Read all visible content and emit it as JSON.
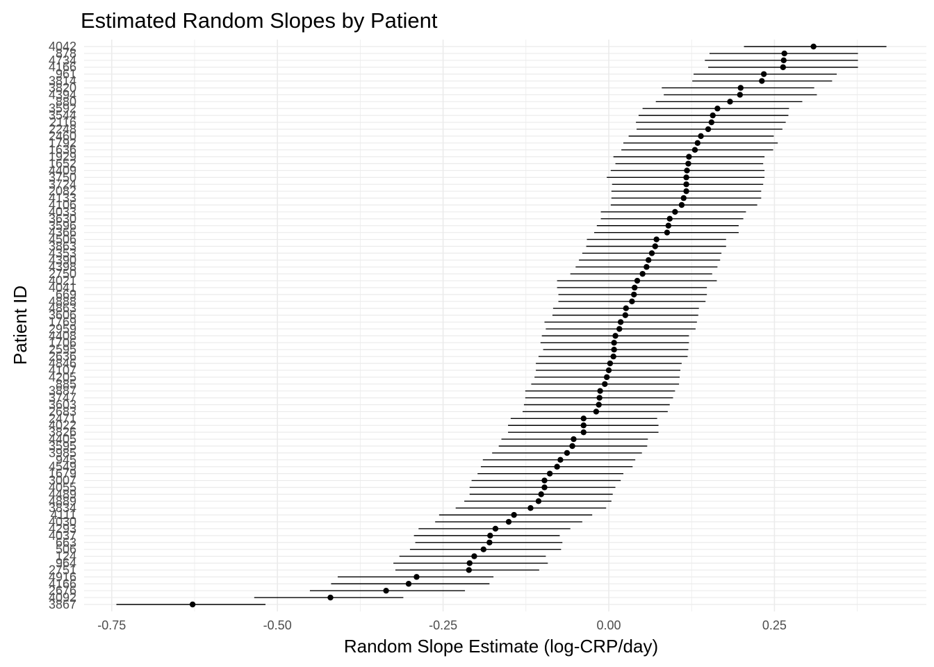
{
  "chart_data": {
    "type": "scatter",
    "title": "Estimated Random Slopes by Patient",
    "xlabel": "Random Slope Estimate (log-CRP/day)",
    "ylabel": "Patient ID",
    "xlim": [
      -0.8,
      0.48
    ],
    "x_ticks": [
      -0.75,
      -0.5,
      -0.25,
      0.0,
      0.25
    ],
    "x_tick_labels": [
      "-0.75",
      "-0.50",
      "-0.25",
      "0.00",
      "0.25"
    ],
    "grid": true,
    "legend": "none",
    "point_color": "#000000",
    "errorbar_color": "#000000",
    "grid_color": "#ebebeb",
    "patients": [
      {
        "id": "4042",
        "estimate": 0.309,
        "lower": 0.204,
        "upper": 0.419
      },
      {
        "id": "878",
        "estimate": 0.265,
        "lower": 0.152,
        "upper": 0.376
      },
      {
        "id": "4734",
        "estimate": 0.264,
        "lower": 0.145,
        "upper": 0.376
      },
      {
        "id": "4166",
        "estimate": 0.263,
        "lower": 0.15,
        "upper": 0.376
      },
      {
        "id": "961",
        "estimate": 0.234,
        "lower": 0.128,
        "upper": 0.344
      },
      {
        "id": "3814",
        "estimate": 0.231,
        "lower": 0.126,
        "upper": 0.337
      },
      {
        "id": "3820",
        "estimate": 0.199,
        "lower": 0.08,
        "upper": 0.31
      },
      {
        "id": "4394",
        "estimate": 0.198,
        "lower": 0.083,
        "upper": 0.314
      },
      {
        "id": "880",
        "estimate": 0.183,
        "lower": 0.071,
        "upper": 0.292
      },
      {
        "id": "3592",
        "estimate": 0.164,
        "lower": 0.051,
        "upper": 0.272
      },
      {
        "id": "3544",
        "estimate": 0.157,
        "lower": 0.045,
        "upper": 0.271
      },
      {
        "id": "2116",
        "estimate": 0.155,
        "lower": 0.041,
        "upper": 0.267
      },
      {
        "id": "2248",
        "estimate": 0.15,
        "lower": 0.042,
        "upper": 0.262
      },
      {
        "id": "2460",
        "estimate": 0.139,
        "lower": 0.03,
        "upper": 0.249
      },
      {
        "id": "1792",
        "estimate": 0.134,
        "lower": 0.022,
        "upper": 0.255
      },
      {
        "id": "1636",
        "estimate": 0.13,
        "lower": 0.019,
        "upper": 0.248
      },
      {
        "id": "1929",
        "estimate": 0.121,
        "lower": 0.007,
        "upper": 0.235
      },
      {
        "id": "1652",
        "estimate": 0.12,
        "lower": 0.01,
        "upper": 0.233
      },
      {
        "id": "4409",
        "estimate": 0.118,
        "lower": 0.003,
        "upper": 0.235
      },
      {
        "id": "3750",
        "estimate": 0.117,
        "lower": -0.003,
        "upper": 0.235
      },
      {
        "id": "3724",
        "estimate": 0.117,
        "lower": 0.005,
        "upper": 0.233
      },
      {
        "id": "2082",
        "estimate": 0.117,
        "lower": 0.004,
        "upper": 0.23
      },
      {
        "id": "4133",
        "estimate": 0.113,
        "lower": 0.004,
        "upper": 0.23
      },
      {
        "id": "4106",
        "estimate": 0.11,
        "lower": 0.003,
        "upper": 0.224
      },
      {
        "id": "4033",
        "estimate": 0.1,
        "lower": -0.012,
        "upper": 0.207
      },
      {
        "id": "3630",
        "estimate": 0.092,
        "lower": -0.012,
        "upper": 0.203
      },
      {
        "id": "3596",
        "estimate": 0.09,
        "lower": -0.018,
        "upper": 0.196
      },
      {
        "id": "4366",
        "estimate": 0.088,
        "lower": -0.022,
        "upper": 0.196
      },
      {
        "id": "4506",
        "estimate": 0.072,
        "lower": -0.033,
        "upper": 0.177
      },
      {
        "id": "3863",
        "estimate": 0.07,
        "lower": -0.034,
        "upper": 0.177
      },
      {
        "id": "4353",
        "estimate": 0.065,
        "lower": -0.04,
        "upper": 0.17
      },
      {
        "id": "4390",
        "estimate": 0.06,
        "lower": -0.045,
        "upper": 0.168
      },
      {
        "id": "4398",
        "estimate": 0.057,
        "lower": -0.05,
        "upper": 0.164
      },
      {
        "id": "2750",
        "estimate": 0.051,
        "lower": -0.058,
        "upper": 0.156
      },
      {
        "id": "4021",
        "estimate": 0.043,
        "lower": -0.078,
        "upper": 0.163
      },
      {
        "id": "4041",
        "estimate": 0.039,
        "lower": -0.078,
        "upper": 0.148
      },
      {
        "id": "669",
        "estimate": 0.038,
        "lower": -0.076,
        "upper": 0.148
      },
      {
        "id": "4888",
        "estimate": 0.035,
        "lower": -0.076,
        "upper": 0.146
      },
      {
        "id": "4863",
        "estimate": 0.026,
        "lower": -0.084,
        "upper": 0.136
      },
      {
        "id": "3606",
        "estimate": 0.025,
        "lower": -0.085,
        "upper": 0.135
      },
      {
        "id": "1769",
        "estimate": 0.018,
        "lower": -0.097,
        "upper": 0.133
      },
      {
        "id": "2959",
        "estimate": 0.016,
        "lower": -0.095,
        "upper": 0.131
      },
      {
        "id": "4408",
        "estimate": 0.01,
        "lower": -0.101,
        "upper": 0.121
      },
      {
        "id": "1706",
        "estimate": 0.008,
        "lower": -0.103,
        "upper": 0.121
      },
      {
        "id": "2595",
        "estimate": 0.008,
        "lower": -0.099,
        "upper": 0.12
      },
      {
        "id": "2636",
        "estimate": 0.007,
        "lower": -0.106,
        "upper": 0.119
      },
      {
        "id": "4846",
        "estimate": 0.002,
        "lower": -0.11,
        "upper": 0.11
      },
      {
        "id": "4107",
        "estimate": 0.0,
        "lower": -0.11,
        "upper": 0.108
      },
      {
        "id": "4205",
        "estimate": -0.003,
        "lower": -0.112,
        "upper": 0.107
      },
      {
        "id": "885",
        "estimate": -0.006,
        "lower": -0.117,
        "upper": 0.106
      },
      {
        "id": "3887",
        "estimate": -0.013,
        "lower": -0.126,
        "upper": 0.1
      },
      {
        "id": "3747",
        "estimate": -0.014,
        "lower": -0.126,
        "upper": 0.097
      },
      {
        "id": "3603",
        "estimate": -0.015,
        "lower": -0.128,
        "upper": 0.092
      },
      {
        "id": "2683",
        "estimate": -0.019,
        "lower": -0.13,
        "upper": 0.089
      },
      {
        "id": "2471",
        "estimate": -0.038,
        "lower": -0.148,
        "upper": 0.073
      },
      {
        "id": "4022",
        "estimate": -0.038,
        "lower": -0.152,
        "upper": 0.075
      },
      {
        "id": "3826",
        "estimate": -0.038,
        "lower": -0.152,
        "upper": 0.075
      },
      {
        "id": "4405",
        "estimate": -0.053,
        "lower": -0.162,
        "upper": 0.059
      },
      {
        "id": "3595",
        "estimate": -0.055,
        "lower": -0.166,
        "upper": 0.058
      },
      {
        "id": "3985",
        "estimate": -0.063,
        "lower": -0.176,
        "upper": 0.05
      },
      {
        "id": "945",
        "estimate": -0.073,
        "lower": -0.19,
        "upper": 0.04
      },
      {
        "id": "4549",
        "estimate": -0.078,
        "lower": -0.193,
        "upper": 0.036
      },
      {
        "id": "1679",
        "estimate": -0.089,
        "lower": -0.198,
        "upper": 0.022
      },
      {
        "id": "3007",
        "estimate": -0.097,
        "lower": -0.207,
        "upper": 0.018
      },
      {
        "id": "4055",
        "estimate": -0.097,
        "lower": -0.21,
        "upper": 0.01
      },
      {
        "id": "4489",
        "estimate": -0.102,
        "lower": -0.21,
        "upper": 0.006
      },
      {
        "id": "4889",
        "estimate": -0.106,
        "lower": -0.218,
        "upper": 0.004
      },
      {
        "id": "3834",
        "estimate": -0.118,
        "lower": -0.231,
        "upper": -0.004
      },
      {
        "id": "4111",
        "estimate": -0.143,
        "lower": -0.256,
        "upper": -0.025
      },
      {
        "id": "4030",
        "estimate": -0.151,
        "lower": -0.262,
        "upper": -0.04
      },
      {
        "id": "4293",
        "estimate": -0.171,
        "lower": -0.287,
        "upper": -0.058
      },
      {
        "id": "4037",
        "estimate": -0.179,
        "lower": -0.294,
        "upper": -0.074
      },
      {
        "id": "663",
        "estimate": -0.18,
        "lower": -0.292,
        "upper": -0.07
      },
      {
        "id": "506",
        "estimate": -0.189,
        "lower": -0.3,
        "upper": -0.072
      },
      {
        "id": "124",
        "estimate": -0.203,
        "lower": -0.316,
        "upper": -0.095
      },
      {
        "id": "964",
        "estimate": -0.21,
        "lower": -0.325,
        "upper": -0.092
      },
      {
        "id": "2751",
        "estimate": -0.211,
        "lower": -0.322,
        "upper": -0.105
      },
      {
        "id": "4916",
        "estimate": -0.29,
        "lower": -0.409,
        "upper": -0.174
      },
      {
        "id": "4166",
        "estimate": -0.302,
        "lower": -0.419,
        "upper": -0.18
      },
      {
        "id": "2676",
        "estimate": -0.336,
        "lower": -0.451,
        "upper": -0.217
      },
      {
        "id": "4092",
        "estimate": -0.42,
        "lower": -0.535,
        "upper": -0.31
      },
      {
        "id": "3867",
        "estimate": -0.628,
        "lower": -0.743,
        "upper": -0.518
      }
    ]
  }
}
